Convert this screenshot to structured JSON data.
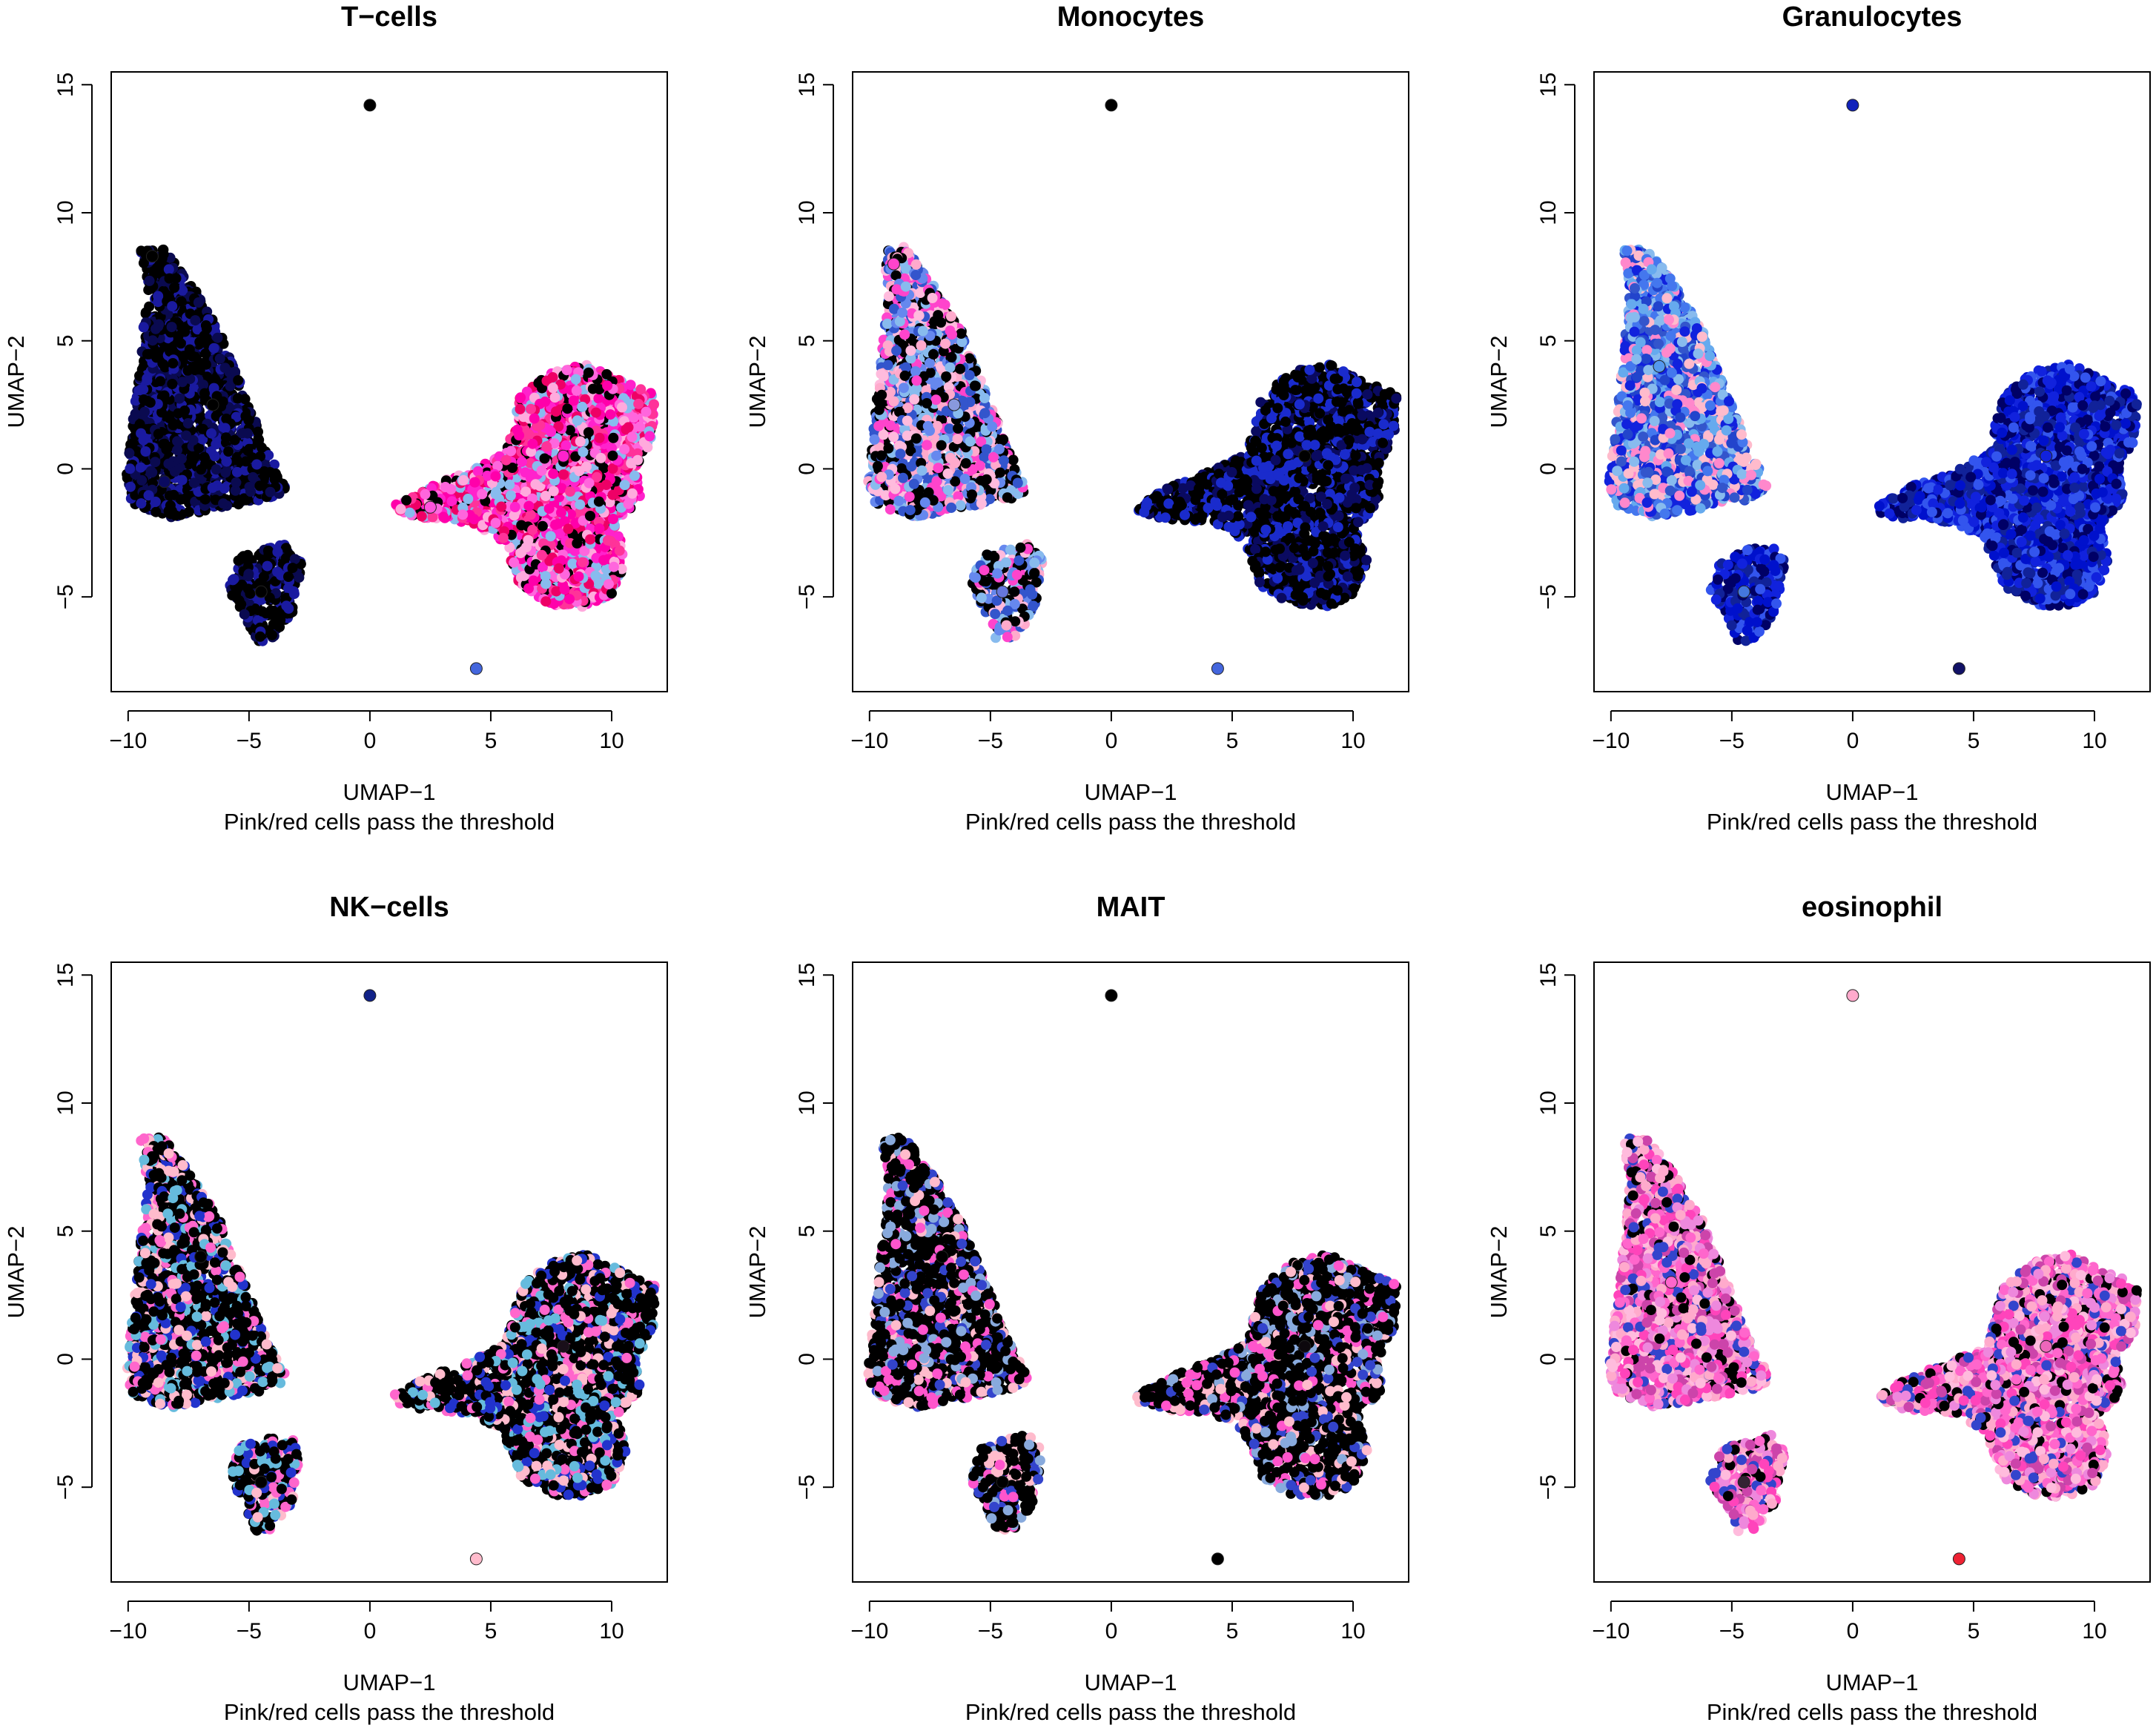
{
  "chart_data": [
    {
      "type": "scatter",
      "title": "T−cells",
      "xlabel": "UMAP−1",
      "subtitle": "Pink/red cells pass the threshold",
      "ylabel": "UMAP−2",
      "xlim": [
        -10.7,
        12.3
      ],
      "ylim": [
        -8.7,
        15.5
      ],
      "xticks": [
        -10,
        -5,
        0,
        5,
        10
      ],
      "xtick_labels": [
        "−10",
        "−5",
        "0",
        "5",
        "10"
      ],
      "yticks": [
        -5,
        0,
        5,
        10,
        15
      ],
      "ytick_labels": [
        "−5",
        "0",
        "5",
        "10",
        "15"
      ],
      "clusters": [
        {
          "x": -9.0,
          "y": 8.3,
          "color": "#000000"
        },
        {
          "x": -6.5,
          "y": 2.5,
          "color": "#000000"
        },
        {
          "x": -8.5,
          "y": -0.5,
          "color": "#0a0a60"
        },
        {
          "x": -4.5,
          "y": -4.8,
          "color": "#000000"
        },
        {
          "x": 8.0,
          "y": 0.5,
          "color": "#ff22cc"
        },
        {
          "x": 2.5,
          "y": -1.5,
          "color": "#ff55dd"
        },
        {
          "x": 0.0,
          "y": 14.2,
          "color": "#000000"
        },
        {
          "x": 4.4,
          "y": -7.8,
          "color": "#4466dd"
        }
      ]
    },
    {
      "type": "scatter",
      "title": "Monocytes",
      "xlabel": "UMAP−1",
      "subtitle": "Pink/red cells pass the threshold",
      "ylabel": "UMAP−2",
      "xlim": [
        -10.7,
        12.3
      ],
      "ylim": [
        -8.7,
        15.5
      ],
      "xticks": [
        -10,
        -5,
        0,
        5,
        10
      ],
      "xtick_labels": [
        "−10",
        "−5",
        "0",
        "5",
        "10"
      ],
      "yticks": [
        -5,
        0,
        5,
        10,
        15
      ],
      "ytick_labels": [
        "−5",
        "0",
        "5",
        "10",
        "15"
      ],
      "clusters": [
        {
          "x": -9.0,
          "y": 8.0,
          "color": "#ff44cc"
        },
        {
          "x": -6.5,
          "y": 2.5,
          "color": "#8899dd"
        },
        {
          "x": -4.5,
          "y": -4.8,
          "color": "#6677dd"
        },
        {
          "x": 8.0,
          "y": 0.5,
          "color": "#000000"
        },
        {
          "x": 0.0,
          "y": 14.2,
          "color": "#000000"
        },
        {
          "x": 4.4,
          "y": -7.8,
          "color": "#4466dd"
        }
      ]
    },
    {
      "type": "scatter",
      "title": "Granulocytes",
      "xlabel": "UMAP−1",
      "subtitle": "Pink/red cells pass the threshold",
      "ylabel": "UMAP−2",
      "xlim": [
        -10.7,
        12.3
      ],
      "ylim": [
        -8.7,
        15.5
      ],
      "xticks": [
        -10,
        -5,
        0,
        5,
        10
      ],
      "xtick_labels": [
        "−10",
        "−5",
        "0",
        "5",
        "10"
      ],
      "yticks": [
        -5,
        0,
        5,
        10,
        15
      ],
      "ytick_labels": [
        "−5",
        "0",
        "5",
        "10",
        "15"
      ],
      "clusters": [
        {
          "x": -8.0,
          "y": 4.0,
          "color": "#5599ee"
        },
        {
          "x": -4.5,
          "y": -4.8,
          "color": "#4477dd"
        },
        {
          "x": 8.0,
          "y": 0.5,
          "color": "#1122dd"
        },
        {
          "x": 0.0,
          "y": 14.2,
          "color": "#1122bb"
        },
        {
          "x": 4.4,
          "y": -7.8,
          "color": "#111166"
        }
      ]
    },
    {
      "type": "scatter",
      "title": "NK−cells",
      "xlabel": "UMAP−1",
      "subtitle": "Pink/red cells pass the threshold",
      "ylabel": "UMAP−2",
      "xlim": [
        -10.7,
        12.3
      ],
      "ylim": [
        -8.7,
        15.5
      ],
      "xticks": [
        -10,
        -5,
        0,
        5,
        10
      ],
      "xtick_labels": [
        "−10",
        "−5",
        "0",
        "5",
        "10"
      ],
      "yticks": [
        -5,
        0,
        5,
        10,
        15
      ],
      "ytick_labels": [
        "−5",
        "0",
        "5",
        "10",
        "15"
      ],
      "clusters": [
        {
          "x": -7.0,
          "y": 4.0,
          "color": "#000000"
        },
        {
          "x": -4.5,
          "y": -4.8,
          "color": "#000000"
        },
        {
          "x": 8.0,
          "y": 0.5,
          "color": "#1a0f1a"
        },
        {
          "x": 0.0,
          "y": 14.2,
          "color": "#112288"
        },
        {
          "x": 4.4,
          "y": -7.8,
          "color": "#ffbbcc"
        }
      ]
    },
    {
      "type": "scatter",
      "title": "MAIT",
      "xlabel": "UMAP−1",
      "subtitle": "Pink/red cells pass the threshold",
      "ylabel": "UMAP−2",
      "xlim": [
        -10.7,
        12.3
      ],
      "ylim": [
        -8.7,
        15.5
      ],
      "xticks": [
        -10,
        -5,
        0,
        5,
        10
      ],
      "xtick_labels": [
        "−10",
        "−5",
        "0",
        "5",
        "10"
      ],
      "yticks": [
        -5,
        0,
        5,
        10,
        15
      ],
      "ytick_labels": [
        "−5",
        "0",
        "5",
        "10",
        "15"
      ],
      "clusters": [
        {
          "x": -7.0,
          "y": 4.0,
          "color": "#000000"
        },
        {
          "x": -4.5,
          "y": -4.8,
          "color": "#000000"
        },
        {
          "x": 8.0,
          "y": 0.5,
          "color": "#0d080d"
        },
        {
          "x": 0.0,
          "y": 14.2,
          "color": "#000000"
        },
        {
          "x": 4.4,
          "y": -7.8,
          "color": "#000000"
        }
      ]
    },
    {
      "type": "scatter",
      "title": "eosinophil",
      "xlabel": "UMAP−1",
      "subtitle": "Pink/red cells pass the threshold",
      "ylabel": "UMAP−2",
      "xlim": [
        -10.7,
        12.3
      ],
      "ylim": [
        -8.7,
        15.5
      ],
      "xticks": [
        -10,
        -5,
        0,
        5,
        10
      ],
      "xtick_labels": [
        "−10",
        "−5",
        "0",
        "5",
        "10"
      ],
      "yticks": [
        -5,
        0,
        5,
        10,
        15
      ],
      "ytick_labels": [
        "−5",
        "0",
        "5",
        "10",
        "15"
      ],
      "clusters": [
        {
          "x": -7.5,
          "y": 3.0,
          "color": "#ff66cc"
        },
        {
          "x": -4.5,
          "y": -4.8,
          "color": "#332233"
        },
        {
          "x": 8.0,
          "y": 0.5,
          "color": "#ee66bb"
        },
        {
          "x": 0.0,
          "y": 14.2,
          "color": "#ffaacc"
        },
        {
          "x": 4.4,
          "y": -7.8,
          "color": "#ee2233"
        }
      ]
    }
  ]
}
